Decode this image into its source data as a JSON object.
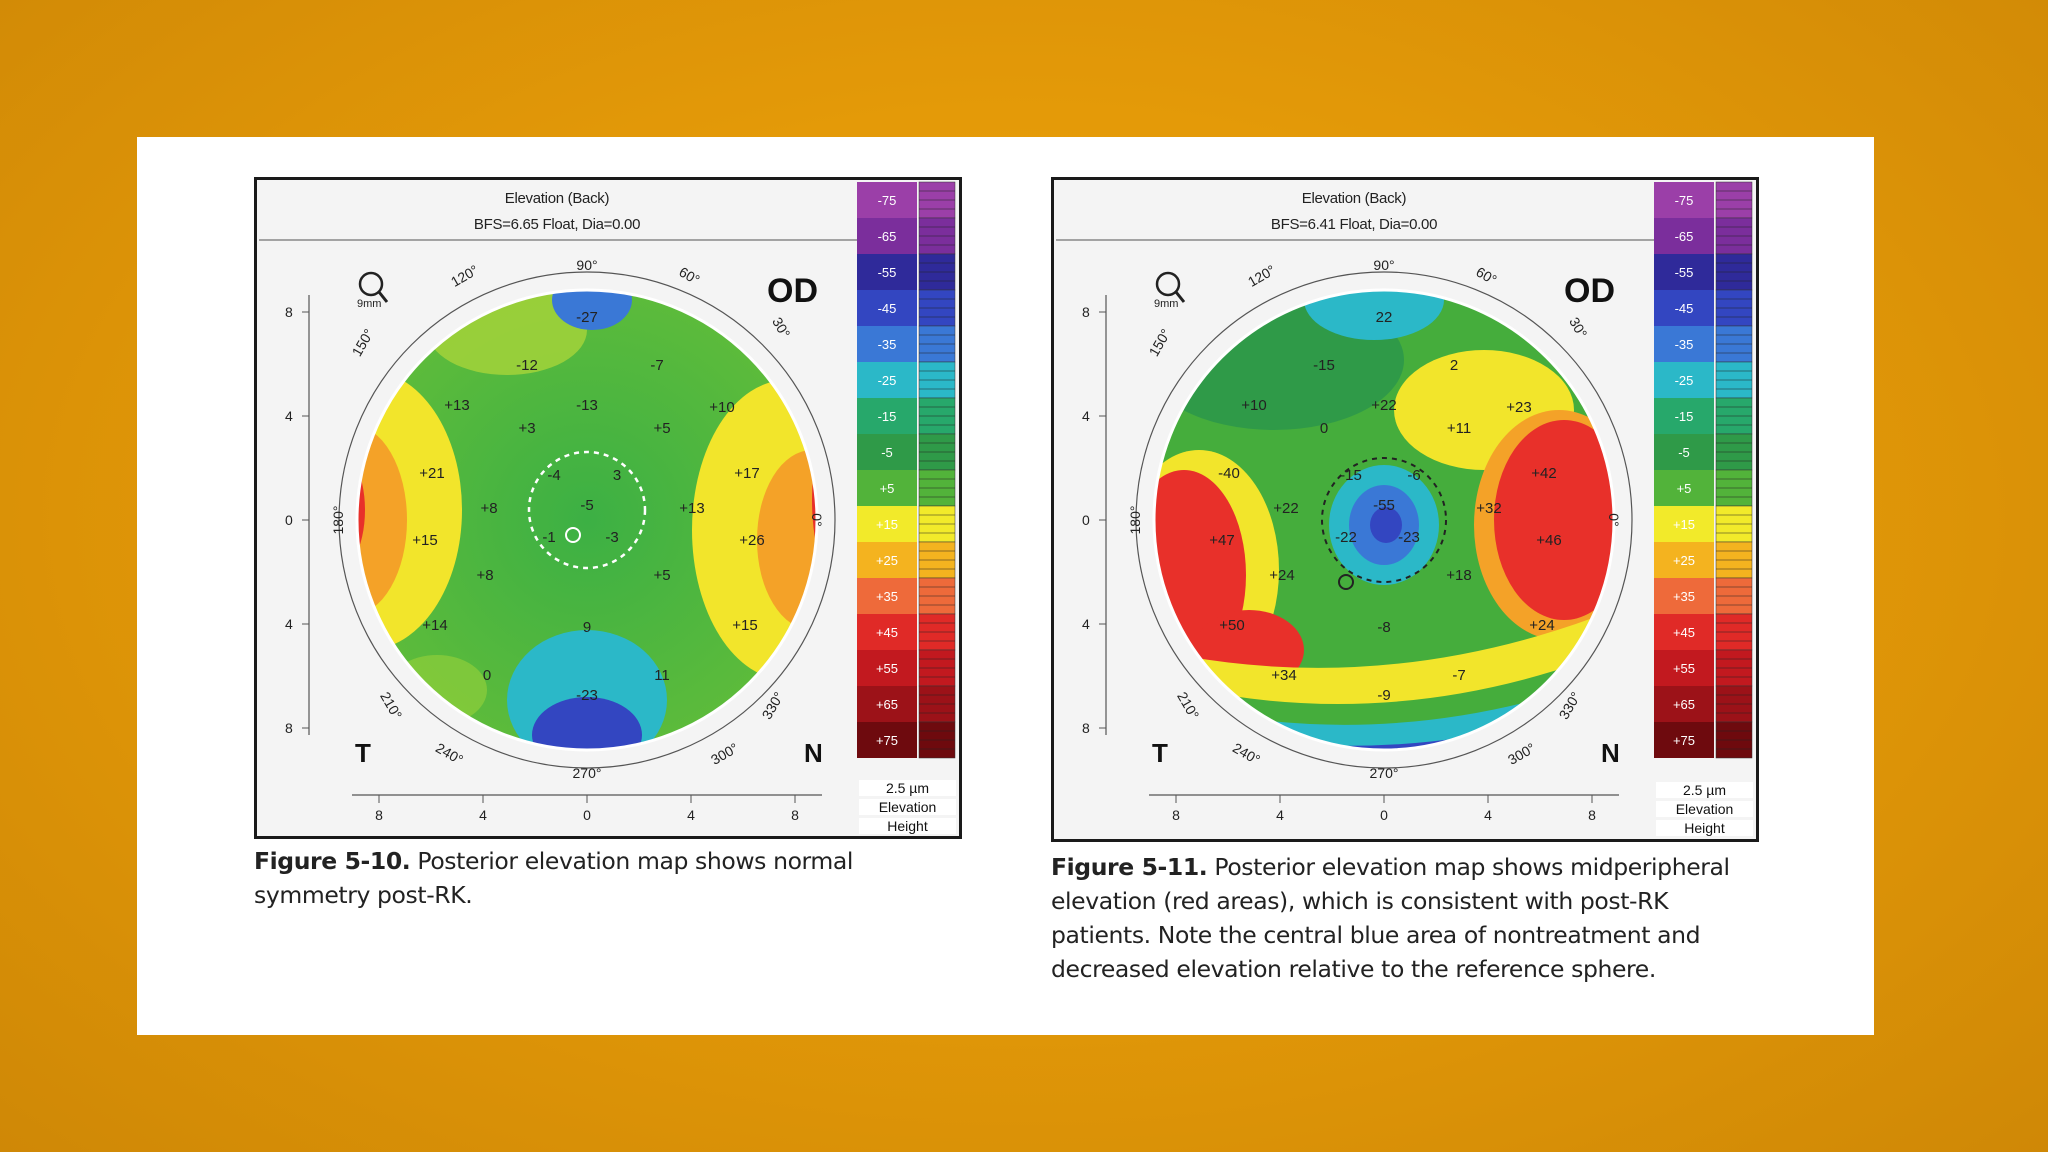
{
  "figures": [
    {
      "title_line1": "Elevation (Back)",
      "title_line2": "BFS=6.65 Float, Dia=0.00",
      "eye_label": "OD",
      "zoom_label": "9mm",
      "temporal_label": "T",
      "nasal_label": "N",
      "scale_step": "2.5 µm",
      "scale_name": "Elevation",
      "scale_type": "Height",
      "colorbar": [
        "-75",
        "-65",
        "-55",
        "-45",
        "-35",
        "-25",
        "-15",
        "-5",
        "+5",
        "+15",
        "+25",
        "+35",
        "+45",
        "+55",
        "+65",
        "+75"
      ],
      "angle_labels": [
        "90°",
        "60°",
        "30°",
        "0°",
        "330°",
        "300°",
        "270°",
        "240°",
        "210°",
        "180°",
        "150°",
        "120°"
      ],
      "x_ticks": [
        "8",
        "4",
        "0",
        "4",
        "8"
      ],
      "y_ticks": [
        "8",
        "4",
        "0",
        "4",
        "8"
      ],
      "map_values": [
        "-27",
        "-12",
        "-7",
        "+13",
        "+3",
        "-13",
        "+5",
        "+10",
        "+21",
        "-4",
        "3",
        "+17",
        "+8",
        "-5",
        "+13",
        "+15",
        "-1",
        "-3",
        "+26",
        "+8",
        "+5",
        "+14",
        "9",
        "+15",
        "0",
        "11",
        "-23"
      ],
      "caption_label": "Figure 5-10.",
      "caption_text": " Posterior elevation map shows normal symmetry post-RK."
    },
    {
      "title_line1": "Elevation (Back)",
      "title_line2": "BFS=6.41 Float, Dia=0.00",
      "eye_label": "OD",
      "zoom_label": "9mm",
      "temporal_label": "T",
      "nasal_label": "N",
      "scale_step": "2.5 µm",
      "scale_name": "Elevation",
      "scale_type": "Height",
      "colorbar": [
        "-75",
        "-65",
        "-55",
        "-45",
        "-35",
        "-25",
        "-15",
        "-5",
        "+5",
        "+15",
        "+25",
        "+35",
        "+45",
        "+55",
        "+65",
        "+75"
      ],
      "angle_labels": [
        "90°",
        "60°",
        "30°",
        "0°",
        "330°",
        "300°",
        "270°",
        "240°",
        "210°",
        "180°",
        "150°",
        "120°"
      ],
      "x_ticks": [
        "8",
        "4",
        "0",
        "4",
        "8"
      ],
      "y_ticks": [
        "8",
        "4",
        "0",
        "4",
        "8"
      ],
      "map_values": [
        "22",
        "-15",
        "2",
        "+10",
        "0",
        "+22",
        "+11",
        "+23",
        "-40",
        "-15",
        "-6",
        "+42",
        "+22",
        "-55",
        "+32",
        "+47",
        "-22",
        "-23",
        "+46",
        "+24",
        "+18",
        "+50",
        "-8",
        "+24",
        "+34",
        "-7",
        "-9"
      ],
      "caption_label": "Figure 5-11.",
      "caption_text": " Posterior elevation map shows midperipheral elevation (red areas), which is consistent with post-RK patients. Note the central blue area of nontreatment and decreased elevation relative to the reference sphere."
    }
  ],
  "colors": {
    "background": "#e49a08",
    "page": "#ffffff",
    "colorbar": [
      "#9b3fa8",
      "#7b2e9c",
      "#2f2a9a",
      "#3346c1",
      "#3a78d6",
      "#2bb8c8",
      "#27a86b",
      "#2f9a48",
      "#52b33a",
      "#f2ea2a",
      "#f4b31f",
      "#ee6a3a",
      "#e02a27",
      "#c2191f",
      "#9c1218",
      "#6e0a0e"
    ]
  }
}
